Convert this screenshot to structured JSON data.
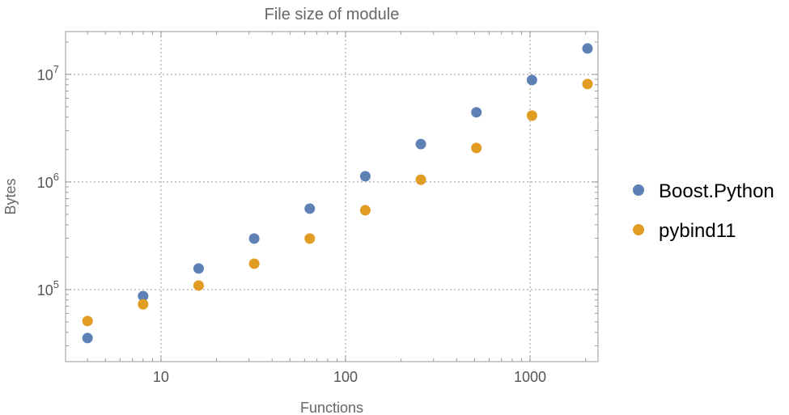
{
  "chart_data": {
    "type": "scatter",
    "title": "File size of module",
    "xlabel": "Functions",
    "ylabel": "Bytes",
    "xscale": "log",
    "yscale": "log",
    "xlim": [
      3.04,
      2335
    ],
    "ylim": [
      21400,
      25000000
    ],
    "grid": true,
    "legend_position": "right",
    "x_ticks": [
      {
        "value": 10,
        "label": "10"
      },
      {
        "value": 100,
        "label": "100"
      },
      {
        "value": 1000,
        "label": "1000"
      }
    ],
    "y_ticks": [
      {
        "value": 100000,
        "base": "10",
        "exp": "5"
      },
      {
        "value": 1000000,
        "base": "10",
        "exp": "6"
      },
      {
        "value": 10000000,
        "base": "10",
        "exp": "7"
      }
    ],
    "x": [
      4,
      8,
      16,
      32,
      64,
      128,
      256,
      512,
      1024,
      2048
    ],
    "series": [
      {
        "name": "Boost.Python",
        "color": "#5E81B5",
        "values": [
          35400,
          87000,
          157000,
          298000,
          565000,
          1130000,
          2250000,
          4440000,
          8860000,
          17400000
        ]
      },
      {
        "name": "pybind11",
        "color": "#E19C24",
        "values": [
          51000,
          73000,
          109000,
          174000,
          298000,
          546000,
          1050000,
          2070000,
          4140000,
          8130000
        ]
      }
    ]
  }
}
